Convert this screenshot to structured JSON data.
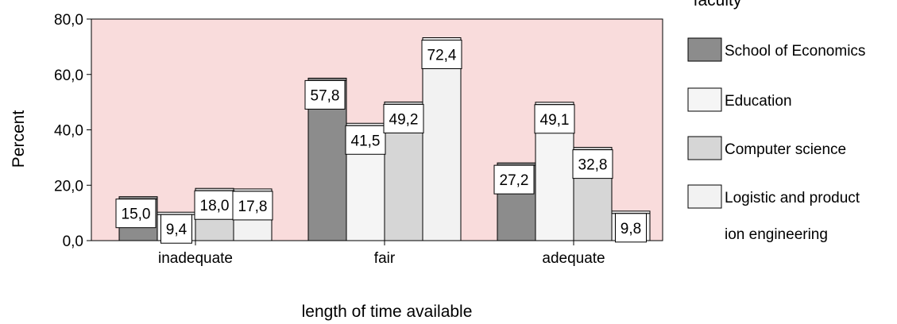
{
  "chart_data": {
    "type": "bar",
    "title": "",
    "legend_title": "faculty",
    "xlabel": "length of time available",
    "ylabel": "Percent",
    "ylim": [
      0,
      80
    ],
    "yticks": [
      "0,0",
      "20,0",
      "40,0",
      "60,0",
      "80,0"
    ],
    "ytick_values": [
      0,
      20,
      40,
      60,
      80
    ],
    "categories": [
      "inadequate",
      "fair",
      "adequate"
    ],
    "series": [
      {
        "name": "School of Economics",
        "values": [
          15.0,
          57.8,
          27.2
        ],
        "labels": [
          "15,0",
          "57,8",
          "27,2"
        ],
        "color": "#8c8c8c"
      },
      {
        "name": "Education",
        "values": [
          9.4,
          41.5,
          49.1
        ],
        "labels": [
          "9,4",
          "41,5",
          "49,1"
        ],
        "color": "#f5f5f5"
      },
      {
        "name": "Computer science",
        "values": [
          18.0,
          49.2,
          32.8
        ],
        "labels": [
          "18,0",
          "49,2",
          "32,8"
        ],
        "color": "#d6d6d6"
      },
      {
        "name": "Logistic and product\nion engineering",
        "legend_lines": [
          "Logistic and product",
          "ion engineering"
        ],
        "values": [
          17.8,
          72.4,
          9.8
        ],
        "labels": [
          "17,8",
          "72,4",
          "9,8"
        ],
        "color": "#f2f2f2"
      }
    ],
    "plot_background": "#f9dcdc",
    "grid": false,
    "legend_position": "right"
  }
}
